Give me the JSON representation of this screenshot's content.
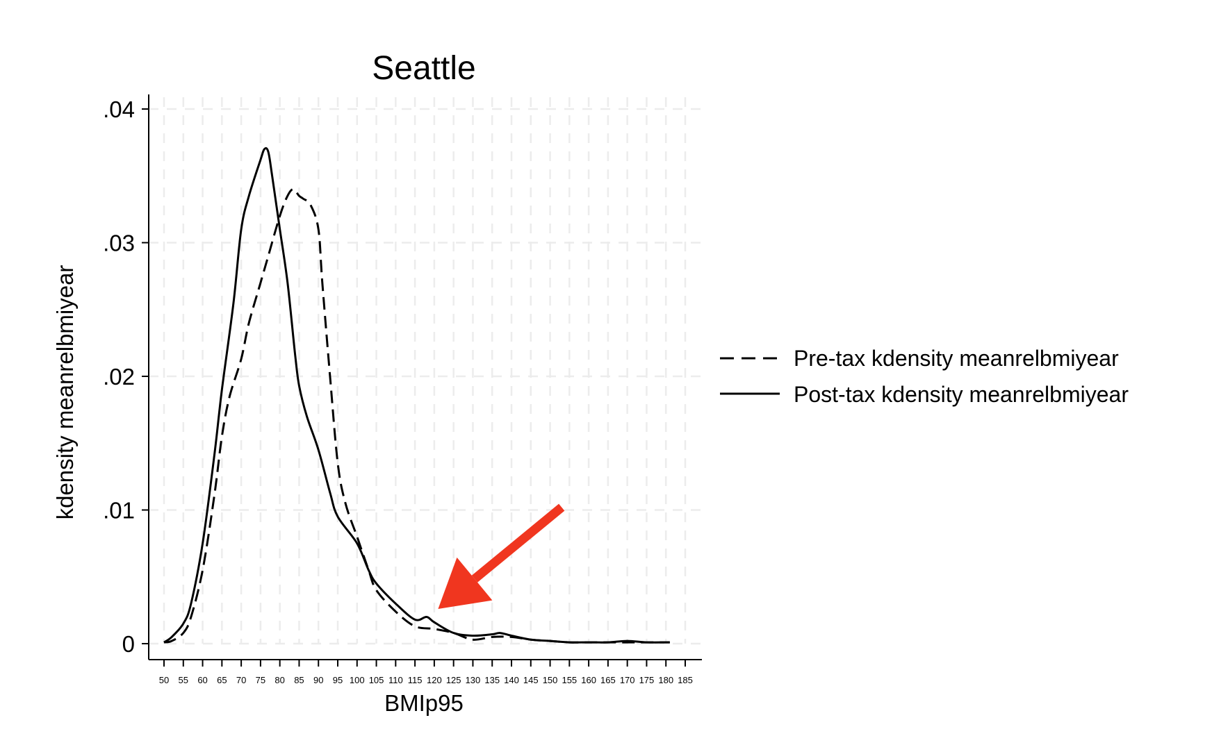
{
  "chart_data": {
    "type": "line",
    "title": "Seattle",
    "xlabel": "BMIp95",
    "ylabel": "kdensity meanrelbmiyear",
    "xlim": [
      50,
      185
    ],
    "ylim": [
      0,
      0.04
    ],
    "x_ticks": [
      50,
      55,
      60,
      65,
      70,
      75,
      80,
      85,
      90,
      95,
      100,
      105,
      110,
      115,
      120,
      125,
      130,
      135,
      140,
      145,
      150,
      155,
      160,
      165,
      170,
      175,
      180,
      185
    ],
    "x_tick_labels": [
      "50",
      "55",
      "60",
      "65",
      "70",
      "75",
      "80",
      "85",
      "90",
      "95",
      "100",
      "105",
      "110",
      "115",
      "120",
      "125",
      "130",
      "135",
      "140",
      "145",
      "150",
      "155",
      "160",
      "165",
      "170",
      "175",
      "180",
      "185"
    ],
    "y_ticks": [
      0,
      0.01,
      0.02,
      0.03,
      0.04
    ],
    "y_tick_labels": [
      "0",
      ".01",
      ".02",
      ".03",
      ".04"
    ],
    "grid": true,
    "legend_position": "right",
    "series": [
      {
        "name": "Pre-tax kdensity meanrelbmiyear",
        "style": "dashed",
        "color": "#000000",
        "points": [
          [
            50,
            0.0001
          ],
          [
            52,
            0.0002
          ],
          [
            55,
            0.0008
          ],
          [
            57,
            0.002
          ],
          [
            60,
            0.0055
          ],
          [
            63,
            0.011
          ],
          [
            65,
            0.0155
          ],
          [
            67,
            0.0185
          ],
          [
            70,
            0.0213
          ],
          [
            72,
            0.024
          ],
          [
            75,
            0.027
          ],
          [
            77,
            0.029
          ],
          [
            80,
            0.032
          ],
          [
            82,
            0.0335
          ],
          [
            83.5,
            0.034
          ],
          [
            85,
            0.0335
          ],
          [
            86,
            0.0333
          ],
          [
            88,
            0.0328
          ],
          [
            90,
            0.031
          ],
          [
            91,
            0.027
          ],
          [
            93,
            0.02
          ],
          [
            95,
            0.0135
          ],
          [
            97,
            0.0105
          ],
          [
            100,
            0.008
          ],
          [
            103,
            0.0055
          ],
          [
            105,
            0.004
          ],
          [
            110,
            0.0024
          ],
          [
            115,
            0.0013
          ],
          [
            120,
            0.0011
          ],
          [
            125,
            0.0008
          ],
          [
            130,
            0.0003
          ],
          [
            135,
            0.0005
          ],
          [
            140,
            0.0005
          ],
          [
            145,
            0.0003
          ],
          [
            150,
            0.0002
          ],
          [
            155,
            0.0001
          ],
          [
            160,
            0.0001
          ],
          [
            165,
            0.0001
          ],
          [
            170,
            0.0001
          ],
          [
            175,
            0.0001
          ],
          [
            180,
            0.0001
          ],
          [
            181,
            0.0001
          ]
        ]
      },
      {
        "name": "Post-tax kdensity meanrelbmiyear",
        "style": "solid",
        "color": "#000000",
        "points": [
          [
            50,
            0.0001
          ],
          [
            52,
            0.0005
          ],
          [
            55,
            0.0015
          ],
          [
            57,
            0.003
          ],
          [
            60,
            0.0075
          ],
          [
            63,
            0.014
          ],
          [
            65,
            0.019
          ],
          [
            68,
            0.0255
          ],
          [
            70,
            0.031
          ],
          [
            72,
            0.0335
          ],
          [
            75,
            0.0362
          ],
          [
            76,
            0.037
          ],
          [
            77,
            0.0368
          ],
          [
            78,
            0.035
          ],
          [
            80,
            0.031
          ],
          [
            82,
            0.027
          ],
          [
            84,
            0.0215
          ],
          [
            85,
            0.0193
          ],
          [
            87,
            0.017
          ],
          [
            90,
            0.0145
          ],
          [
            93,
            0.0113
          ],
          [
            95,
            0.0095
          ],
          [
            100,
            0.0075
          ],
          [
            103,
            0.0055
          ],
          [
            105,
            0.0045
          ],
          [
            110,
            0.003
          ],
          [
            115,
            0.0018
          ],
          [
            118,
            0.002
          ],
          [
            120,
            0.0016
          ],
          [
            125,
            0.0008
          ],
          [
            130,
            0.0006
          ],
          [
            135,
            0.0007
          ],
          [
            137,
            0.0008
          ],
          [
            140,
            0.0006
          ],
          [
            145,
            0.0003
          ],
          [
            150,
            0.0002
          ],
          [
            155,
            0.0001
          ],
          [
            160,
            0.0001
          ],
          [
            165,
            0.0001
          ],
          [
            170,
            0.0002
          ],
          [
            175,
            0.0001
          ],
          [
            180,
            0.0001
          ],
          [
            181,
            0.0001
          ]
        ]
      }
    ],
    "annotations": [
      {
        "type": "arrow",
        "color": "#f0361f",
        "from": [
          153,
          0.0102
        ],
        "to": [
          121,
          0.0026
        ]
      }
    ]
  }
}
